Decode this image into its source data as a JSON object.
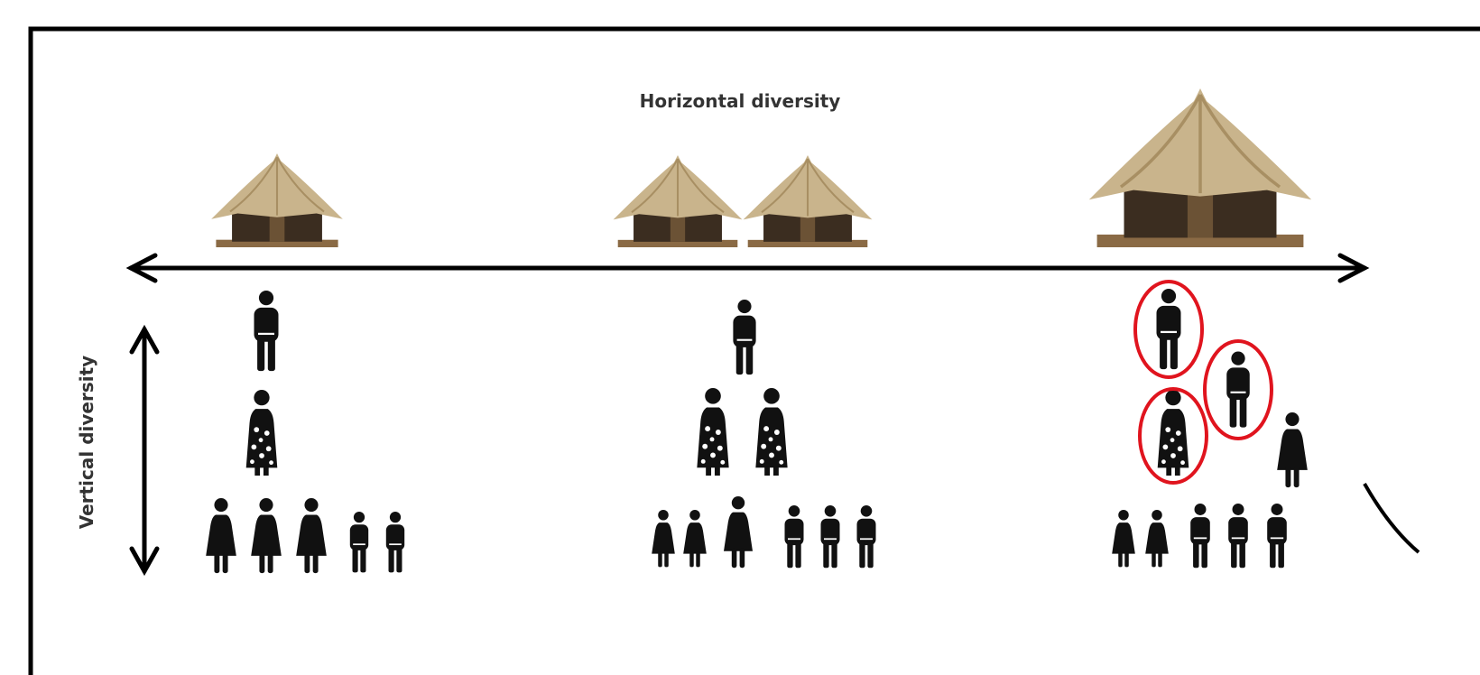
{
  "labels": {
    "horizontal": "Horizontal diversity",
    "vertical": "Vertical diversity"
  }
}
